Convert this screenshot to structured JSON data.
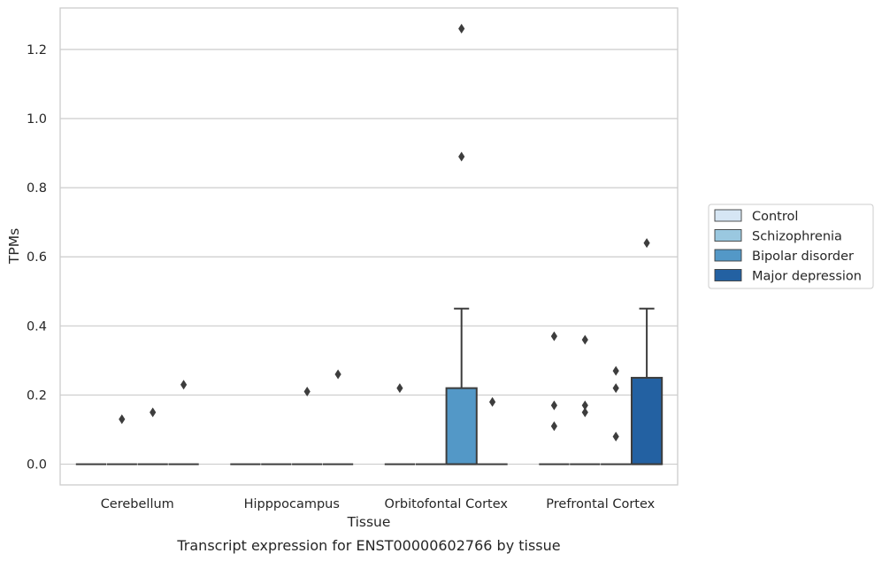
{
  "chart_data": {
    "type": "box",
    "caption": "Transcript expression for ENST00000602766 by tissue",
    "xlabel": "Tissue",
    "ylabel": "TPMs",
    "ylim": [
      -0.06,
      1.32
    ],
    "yticks": [
      0.0,
      0.2,
      0.4,
      0.6,
      0.8,
      1.0,
      1.2
    ],
    "ytick_labels": [
      "0.0",
      "0.2",
      "0.4",
      "0.6",
      "0.8",
      "1.0",
      "1.2"
    ],
    "grid": "horizontal",
    "legend_position": "right",
    "categories": [
      "Cerebellum",
      "Hipppocampus",
      "Orbitofontal Cortex",
      "Prefrontal Cortex"
    ],
    "series": [
      {
        "name": "Control",
        "color": "#d6e6f4",
        "boxes": [
          {
            "q1": 0,
            "median": 0,
            "q3": 0,
            "whislo": 0,
            "whishi": 0,
            "fliers": []
          },
          {
            "q1": 0,
            "median": 0,
            "q3": 0,
            "whislo": 0,
            "whishi": 0,
            "fliers": []
          },
          {
            "q1": 0,
            "median": 0,
            "q3": 0,
            "whislo": 0,
            "whishi": 0,
            "fliers": [
              0.22
            ]
          },
          {
            "q1": 0,
            "median": 0,
            "q3": 0,
            "whislo": 0,
            "whishi": 0,
            "fliers": [
              0.37,
              0.17,
              0.11
            ]
          }
        ]
      },
      {
        "name": "Schizophrenia",
        "color": "#9ac8e0",
        "boxes": [
          {
            "q1": 0,
            "median": 0,
            "q3": 0,
            "whislo": 0,
            "whishi": 0,
            "fliers": [
              0.13
            ]
          },
          {
            "q1": 0,
            "median": 0,
            "q3": 0,
            "whislo": 0,
            "whishi": 0,
            "fliers": []
          },
          {
            "q1": 0,
            "median": 0,
            "q3": 0,
            "whislo": 0,
            "whishi": 0,
            "fliers": []
          },
          {
            "q1": 0,
            "median": 0,
            "q3": 0,
            "whislo": 0,
            "whishi": 0,
            "fliers": [
              0.36,
              0.17,
              0.15
            ]
          }
        ]
      },
      {
        "name": "Bipolar disorder",
        "color": "#5398c7",
        "boxes": [
          {
            "q1": 0,
            "median": 0,
            "q3": 0,
            "whislo": 0,
            "whishi": 0,
            "fliers": [
              0.15
            ]
          },
          {
            "q1": 0,
            "median": 0,
            "q3": 0,
            "whislo": 0,
            "whishi": 0,
            "fliers": [
              0.21
            ]
          },
          {
            "q1": 0,
            "median": 0,
            "q3": 0.22,
            "whislo": 0,
            "whishi": 0.45,
            "fliers": [
              1.26,
              0.89
            ]
          },
          {
            "q1": 0,
            "median": 0,
            "q3": 0,
            "whislo": 0,
            "whishi": 0,
            "fliers": [
              0.27,
              0.22,
              0.08
            ]
          }
        ]
      },
      {
        "name": "Major depression",
        "color": "#2361a2",
        "boxes": [
          {
            "q1": 0,
            "median": 0,
            "q3": 0,
            "whislo": 0,
            "whishi": 0,
            "fliers": [
              0.23
            ]
          },
          {
            "q1": 0,
            "median": 0,
            "q3": 0,
            "whislo": 0,
            "whishi": 0,
            "fliers": [
              0.26
            ]
          },
          {
            "q1": 0,
            "median": 0,
            "q3": 0,
            "whislo": 0,
            "whishi": 0,
            "fliers": [
              0.18
            ]
          },
          {
            "q1": 0,
            "median": 0,
            "q3": 0.25,
            "whislo": 0,
            "whishi": 0.45,
            "fliers": [
              0.64
            ]
          }
        ]
      }
    ]
  }
}
